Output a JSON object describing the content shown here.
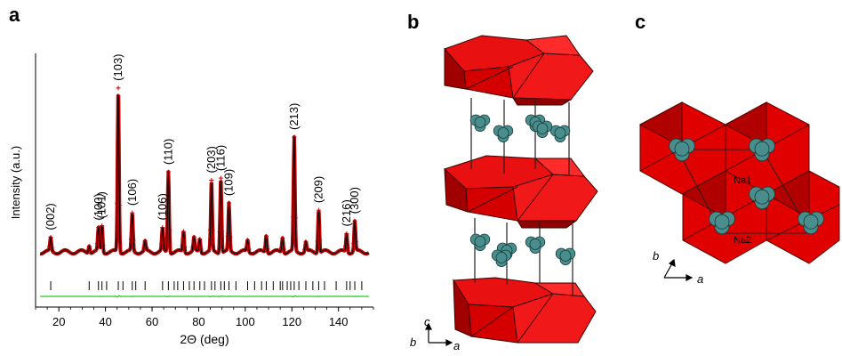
{
  "figure": {
    "panel_labels": [
      "a",
      "b",
      "c"
    ]
  },
  "panel_a": {
    "ylabel": "Intensity (a.u.)",
    "xlabel": "2Θ (deg)",
    "xticks": [
      "20",
      "40",
      "60",
      "80",
      "100",
      "120",
      "140"
    ]
  },
  "chart_data": {
    "type": "line",
    "title": "",
    "xlabel": "2Θ (deg)",
    "ylabel": "Intensity (a.u.)",
    "xlim": [
      10,
      155
    ],
    "ylim": [
      0,
      1
    ],
    "grid": false,
    "series": [
      {
        "style": "observed (red crosses)",
        "color": "#c00000"
      },
      {
        "style": "calculated (black line)",
        "color": "#000000"
      },
      {
        "style": "difference (green line)",
        "color": "#22cc22"
      },
      {
        "style": "Bragg positions (black ticks)",
        "color": "#000000"
      }
    ],
    "background_level": 0.08,
    "peaks": [
      {
        "x": 16.5,
        "h": 0.07,
        "label": "(002)"
      },
      {
        "x": 33.0,
        "h": 0.04
      },
      {
        "x": 37.0,
        "h": 0.12,
        "label": "(100)"
      },
      {
        "x": 38.5,
        "h": 0.14,
        "label": "(101)"
      },
      {
        "x": 45.5,
        "h": 0.87,
        "label": "(103)"
      },
      {
        "x": 51.5,
        "h": 0.2,
        "label": "(106)"
      },
      {
        "x": 57.0,
        "h": 0.05
      },
      {
        "x": 64.5,
        "h": 0.12,
        "label": "(106)"
      },
      {
        "x": 67.0,
        "h": 0.43,
        "label": "(110)"
      },
      {
        "x": 73.5,
        "h": 0.11
      },
      {
        "x": 78.0,
        "h": 0.07
      },
      {
        "x": 80.5,
        "h": 0.07
      },
      {
        "x": 85.5,
        "h": 0.37,
        "label": "(203)"
      },
      {
        "x": 89.5,
        "h": 0.4,
        "label": "(116)"
      },
      {
        "x": 93.0,
        "h": 0.25,
        "label": "(109)"
      },
      {
        "x": 101.0,
        "h": 0.06
      },
      {
        "x": 109.0,
        "h": 0.09
      },
      {
        "x": 116.0,
        "h": 0.08
      },
      {
        "x": 121.0,
        "h": 0.6,
        "label": "(213)"
      },
      {
        "x": 126.0,
        "h": 0.05
      },
      {
        "x": 131.5,
        "h": 0.23,
        "label": "(209)"
      },
      {
        "x": 143.5,
        "h": 0.1,
        "label": "(216)"
      },
      {
        "x": 147.0,
        "h": 0.16,
        "label": "(300)"
      }
    ],
    "bragg_ticks": [
      16.5,
      33.0,
      37.0,
      38.5,
      40.5,
      45.5,
      47.5,
      51.5,
      53.0,
      57.0,
      64.5,
      67.0,
      69.5,
      71.0,
      73.5,
      76.0,
      78.0,
      80.5,
      82.5,
      85.5,
      87.0,
      89.5,
      91.0,
      93.0,
      96.0,
      101.0,
      104.0,
      107.0,
      109.0,
      112.0,
      115.0,
      116.0,
      118.0,
      119.5,
      121.0,
      123.0,
      126.0,
      129.0,
      131.5,
      134.0,
      139.0,
      143.5,
      145.0,
      147.0,
      150.0
    ]
  },
  "panel_b": {
    "axes": {
      "c": "c",
      "b": "b",
      "a": "a"
    }
  },
  "panel_c": {
    "site_labels": [
      "Na1",
      "Na2"
    ],
    "axes": {
      "b": "b",
      "a": "a"
    }
  }
}
